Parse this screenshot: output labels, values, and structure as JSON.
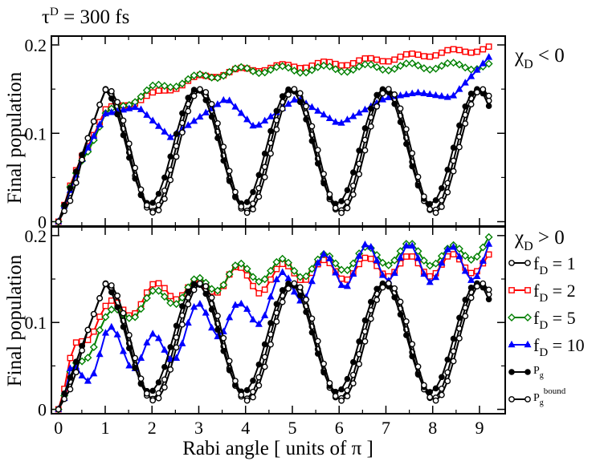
{
  "figure": {
    "title_tau": "τ",
    "title_sup": "D",
    "title_rest": " = 300 fs"
  },
  "chart_data": [
    {
      "type": "line",
      "panel": "top",
      "annotation_main": "χ",
      "annotation_sub": "D",
      "annotation_rest": " < 0",
      "ylabel": "Final population",
      "xlabel": "",
      "xlim": [
        -0.15,
        9.55
      ],
      "ylim": [
        -0.005,
        0.21
      ],
      "xticks": [
        0,
        1,
        2,
        3,
        4,
        5,
        6,
        7,
        8,
        9
      ],
      "yticks": [
        0,
        0.1,
        0.2
      ],
      "ytick_labels": [
        "0",
        "0.1",
        "0.2"
      ],
      "series": [
        {
          "name": "f_D = 1",
          "color": "#000000",
          "marker": "circle-open",
          "params": {
            "amp": 0.15,
            "decay": 0.75,
            "base": 0.001,
            "trough": 0.012,
            "offset": 0
          }
        },
        {
          "name": "f_D = 2",
          "color": "#ff0000",
          "marker": "square-open",
          "params": {
            "plateau": [
              [
                0,
                0
              ],
              [
                0.5,
                0.075
              ],
              [
                1,
                0.125
              ],
              [
                2,
                0.143
              ],
              [
                3,
                0.163
              ],
              [
                4,
                0.172
              ],
              [
                5,
                0.176
              ],
              [
                6,
                0.179
              ],
              [
                7,
                0.184
              ],
              [
                8,
                0.19
              ],
              [
                9.2,
                0.196
              ]
            ],
            "wiggle": 0.003
          }
        },
        {
          "name": "f_D = 5",
          "color": "#008000",
          "marker": "diamond-open",
          "params": {
            "plateau": [
              [
                0,
                0
              ],
              [
                0.5,
                0.07
              ],
              [
                1,
                0.12
              ],
              [
                2,
                0.15
              ],
              [
                3,
                0.163
              ],
              [
                4,
                0.172
              ],
              [
                5,
                0.172
              ],
              [
                6,
                0.173
              ],
              [
                7,
                0.175
              ],
              [
                8,
                0.176
              ],
              [
                9.2,
                0.176
              ]
            ],
            "wiggle": 0.004
          }
        },
        {
          "name": "f_D = 10",
          "color": "#0000ff",
          "marker": "triangle-filled",
          "params": {
            "plateau": [
              [
                0,
                0
              ],
              [
                0.5,
                0.07
              ],
              [
                1,
                0.122
              ],
              [
                1.7,
                0.13
              ],
              [
                2.4,
                0.095
              ],
              [
                3.6,
                0.14
              ],
              [
                4.2,
                0.106
              ],
              [
                5.1,
                0.14
              ],
              [
                6.0,
                0.11
              ],
              [
                7.0,
                0.14
              ],
              [
                7.7,
                0.146
              ],
              [
                8.4,
                0.14
              ],
              [
                9.2,
                0.186
              ]
            ],
            "wiggle": 0.0
          }
        },
        {
          "name": "P_g",
          "color": "#000000",
          "marker": "circle-filled",
          "params": {
            "amp": 0.15,
            "decay": 0.75,
            "base": 0.001,
            "trough": 0.02,
            "offset": 0.05
          }
        },
        {
          "name": "P_g^bound",
          "color": "#000000",
          "marker": "circle-open",
          "params": {
            "amp": 0.15,
            "decay": 0.75,
            "base": 0.001,
            "trough": 0.01,
            "offset": -0.05
          }
        }
      ]
    },
    {
      "type": "line",
      "panel": "bottom",
      "annotation_main": "χ",
      "annotation_sub": "D",
      "annotation_rest": " > 0",
      "ylabel": "Final population",
      "xlabel": "Rabi angle [ units of π ]",
      "xlim": [
        -0.15,
        9.55
      ],
      "ylim": [
        -0.005,
        0.21
      ],
      "xticks": [
        0,
        1,
        2,
        3,
        4,
        5,
        6,
        7,
        8,
        9
      ],
      "xtick_labels": [
        "0",
        "1",
        "2",
        "3",
        "4",
        "5",
        "6",
        "7",
        "8",
        "9"
      ],
      "yticks": [
        0,
        0.1,
        0.2
      ],
      "ytick_labels": [
        "0",
        "0.1",
        "0.2"
      ],
      "series": [
        {
          "name": "f_D = 1",
          "color": "#000000",
          "marker": "circle-open",
          "params": {
            "amp": 0.145,
            "decay": 0.75,
            "base": 0.001,
            "trough": 0.012,
            "offset": 0
          }
        },
        {
          "name": "f_D = 2",
          "color": "#ff0000",
          "marker": "square-open",
          "params": {
            "plateau": [
              [
                0,
                0
              ],
              [
                0.4,
                0.075
              ],
              [
                0.9,
                0.11
              ],
              [
                1.5,
                0.118
              ],
              [
                2.3,
                0.14
              ],
              [
                3.0,
                0.135
              ],
              [
                3.7,
                0.155
              ],
              [
                4.3,
                0.145
              ],
              [
                5.0,
                0.16
              ],
              [
                6.0,
                0.16
              ],
              [
                7.0,
                0.165
              ],
              [
                8.0,
                0.165
              ],
              [
                9.2,
                0.17
              ]
            ],
            "wiggle": 0.012
          }
        },
        {
          "name": "f_D = 5",
          "color": "#008000",
          "marker": "diamond-open",
          "params": {
            "plateau": [
              [
                0,
                0
              ],
              [
                0.4,
                0.05
              ],
              [
                0.9,
                0.095
              ],
              [
                1.5,
                0.115
              ],
              [
                2.3,
                0.13
              ],
              [
                3.0,
                0.14
              ],
              [
                3.7,
                0.155
              ],
              [
                4.5,
                0.16
              ],
              [
                5.5,
                0.165
              ],
              [
                6.5,
                0.175
              ],
              [
                7.5,
                0.18
              ],
              [
                8.3,
                0.175
              ],
              [
                9.2,
                0.19
              ]
            ],
            "wiggle": 0.012
          }
        },
        {
          "name": "f_D = 10",
          "color": "#0000ff",
          "marker": "triangle-filled",
          "params": {
            "plateau": [
              [
                0,
                0
              ],
              [
                0.4,
                0.04
              ],
              [
                1.0,
                0.074
              ],
              [
                1.6,
                0.068
              ],
              [
                2.2,
                0.064
              ],
              [
                2.7,
                0.09
              ],
              [
                3.2,
                0.108
              ],
              [
                3.9,
                0.1
              ],
              [
                4.5,
                0.13
              ],
              [
                5.0,
                0.14
              ],
              [
                5.5,
                0.155
              ],
              [
                6.0,
                0.16
              ],
              [
                6.5,
                0.168
              ],
              [
                7.0,
                0.17
              ],
              [
                7.5,
                0.168
              ],
              [
                8.0,
                0.168
              ],
              [
                8.5,
                0.165
              ],
              [
                9.2,
                0.175
              ]
            ],
            "wiggle": 0.022
          }
        },
        {
          "name": "P_g",
          "color": "#000000",
          "marker": "circle-filled",
          "params": {
            "amp": 0.145,
            "decay": 0.75,
            "base": 0.001,
            "trough": 0.02,
            "offset": 0.05
          }
        },
        {
          "name": "P_g^bound",
          "color": "#000000",
          "marker": "circle-open",
          "params": {
            "amp": 0.145,
            "decay": 0.75,
            "base": 0.001,
            "trough": 0.01,
            "offset": -0.05
          }
        }
      ]
    }
  ],
  "legend": {
    "items": [
      {
        "prefix": "f",
        "sub": "D",
        "text": " =   1",
        "color": "#000000",
        "marker": "circle-open"
      },
      {
        "prefix": "f",
        "sub": "D",
        "text": " =   2",
        "color": "#ff0000",
        "marker": "square-open"
      },
      {
        "prefix": "f",
        "sub": "D",
        "text": " =   5",
        "color": "#008000",
        "marker": "diamond-open"
      },
      {
        "prefix": "f",
        "sub": "D",
        "text": " = 10",
        "color": "#0000ff",
        "marker": "triangle-filled"
      },
      {
        "prefix": "P",
        "sub": "g",
        "sup": "",
        "text": "",
        "color": "#000000",
        "marker": "circle-filled"
      },
      {
        "prefix": "P",
        "sub": "g",
        "sup": "bound",
        "text": "",
        "color": "#000000",
        "marker": "circle-open"
      }
    ]
  }
}
